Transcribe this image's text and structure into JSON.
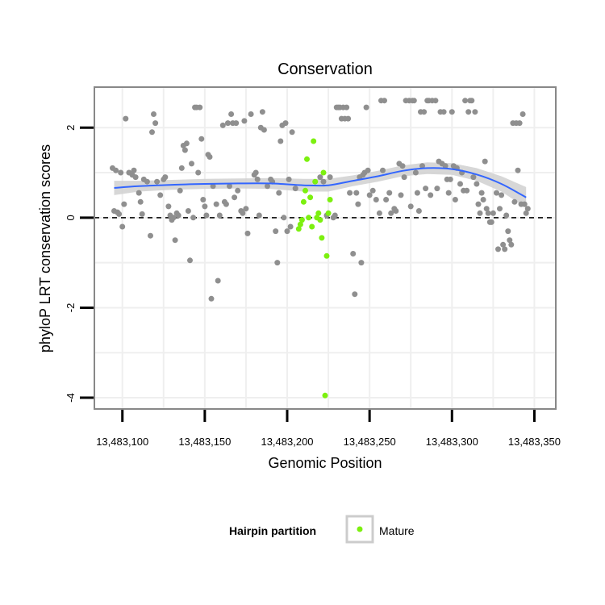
{
  "chart_data": {
    "type": "scatter",
    "title": "Conservation",
    "xlabel": "Genomic Position",
    "ylabel": "phyloP LRT conservation scores",
    "xlim": [
      13483083,
      13483363
    ],
    "ylim": [
      -4.25,
      2.9
    ],
    "x_ticks": [
      13483100,
      13483150,
      13483200,
      13483250,
      13483300,
      13483350
    ],
    "x_tick_labels": [
      "13,483,100",
      "13,483,150",
      "13,483,200",
      "13,483,250",
      "13,483,300",
      "13,483,350"
    ],
    "y_ticks": [
      -4,
      -2,
      0,
      2
    ],
    "y_tick_labels": [
      "-4",
      "-2",
      "0",
      "2"
    ],
    "reference_line": {
      "y": 0,
      "style": "dashed"
    },
    "grid": true,
    "colors": {
      "other": "#8f8f8f",
      "mature": "#7cf00f",
      "smooth": "#3366ff",
      "band": "#d0d0d0",
      "panel_border": "#888888",
      "grid": "#efefef"
    },
    "legend": {
      "title": "Hairpin partition",
      "entries": [
        {
          "label": "Mature",
          "color": "#7cf00f"
        }
      ],
      "placement": "bottom"
    },
    "series": [
      {
        "name": "Other",
        "points": [
          [
            13483094,
            1.1
          ],
          [
            13483095,
            0.15
          ],
          [
            13483096,
            1.05
          ],
          [
            13483097,
            0.12
          ],
          [
            13483098,
            0.08
          ],
          [
            13483099,
            1.0
          ],
          [
            13483100,
            -0.2
          ],
          [
            13483101,
            0.3
          ],
          [
            13483102,
            2.2
          ],
          [
            13483104,
            1.0
          ],
          [
            13483106,
            0.95
          ],
          [
            13483107,
            1.05
          ],
          [
            13483108,
            0.9
          ],
          [
            13483110,
            0.55
          ],
          [
            13483111,
            0.35
          ],
          [
            13483112,
            0.08
          ],
          [
            13483113,
            0.85
          ],
          [
            13483115,
            0.8
          ],
          [
            13483117,
            -0.4
          ],
          [
            13483118,
            1.9
          ],
          [
            13483119,
            2.3
          ],
          [
            13483120,
            2.1
          ],
          [
            13483121,
            0.8
          ],
          [
            13483123,
            0.5
          ],
          [
            13483125,
            0.85
          ],
          [
            13483126,
            0.9
          ],
          [
            13483128,
            0.25
          ],
          [
            13483129,
            0.05
          ],
          [
            13483130,
            -0.05
          ],
          [
            13483131,
            0.0
          ],
          [
            13483132,
            -0.5
          ],
          [
            13483133,
            0.1
          ],
          [
            13483134,
            0.05
          ],
          [
            13483135,
            0.6
          ],
          [
            13483136,
            1.1
          ],
          [
            13483137,
            1.6
          ],
          [
            13483138,
            1.5
          ],
          [
            13483139,
            1.65
          ],
          [
            13483140,
            0.15
          ],
          [
            13483141,
            -0.95
          ],
          [
            13483142,
            1.2
          ],
          [
            13483143,
            0.0
          ],
          [
            13483144,
            2.45
          ],
          [
            13483145,
            2.45
          ],
          [
            13483146,
            1.0
          ],
          [
            13483147,
            2.45
          ],
          [
            13483148,
            1.75
          ],
          [
            13483149,
            0.4
          ],
          [
            13483150,
            0.25
          ],
          [
            13483151,
            0.05
          ],
          [
            13483152,
            1.4
          ],
          [
            13483153,
            1.35
          ],
          [
            13483154,
            -1.8
          ],
          [
            13483155,
            0.7
          ],
          [
            13483157,
            0.3
          ],
          [
            13483158,
            -1.4
          ],
          [
            13483159,
            0.05
          ],
          [
            13483161,
            2.05
          ],
          [
            13483162,
            0.35
          ],
          [
            13483163,
            0.3
          ],
          [
            13483164,
            2.1
          ],
          [
            13483165,
            0.7
          ],
          [
            13483166,
            2.3
          ],
          [
            13483167,
            2.1
          ],
          [
            13483168,
            0.45
          ],
          [
            13483169,
            2.1
          ],
          [
            13483170,
            0.6
          ],
          [
            13483172,
            0.15
          ],
          [
            13483173,
            0.1
          ],
          [
            13483174,
            2.15
          ],
          [
            13483175,
            0.2
          ],
          [
            13483176,
            -0.35
          ],
          [
            13483178,
            2.3
          ],
          [
            13483180,
            0.95
          ],
          [
            13483181,
            1.0
          ],
          [
            13483182,
            0.85
          ],
          [
            13483183,
            0.05
          ],
          [
            13483184,
            2.0
          ],
          [
            13483185,
            2.35
          ],
          [
            13483186,
            1.95
          ],
          [
            13483188,
            0.7
          ],
          [
            13483190,
            0.85
          ],
          [
            13483191,
            0.8
          ],
          [
            13483193,
            -0.3
          ],
          [
            13483194,
            -1.0
          ],
          [
            13483195,
            0.55
          ],
          [
            13483196,
            1.7
          ],
          [
            13483197,
            2.05
          ],
          [
            13483198,
            0.0
          ],
          [
            13483199,
            2.1
          ],
          [
            13483200,
            -0.3
          ],
          [
            13483201,
            0.85
          ],
          [
            13483202,
            -0.2
          ],
          [
            13483203,
            1.9
          ],
          [
            13483205,
            0.65
          ],
          [
            13483220,
            0.9
          ],
          [
            13483222,
            0.8
          ],
          [
            13483224,
            0.05
          ],
          [
            13483226,
            0.9
          ],
          [
            13483228,
            0.0
          ],
          [
            13483229,
            0.05
          ],
          [
            13483230,
            2.45
          ],
          [
            13483231,
            2.45
          ],
          [
            13483232,
            2.45
          ],
          [
            13483233,
            2.2
          ],
          [
            13483234,
            2.45
          ],
          [
            13483235,
            2.2
          ],
          [
            13483236,
            2.45
          ],
          [
            13483237,
            2.2
          ],
          [
            13483238,
            0.55
          ],
          [
            13483240,
            -0.8
          ],
          [
            13483241,
            -1.7
          ],
          [
            13483242,
            0.55
          ],
          [
            13483243,
            0.3
          ],
          [
            13483244,
            0.9
          ],
          [
            13483245,
            -1.0
          ],
          [
            13483246,
            0.95
          ],
          [
            13483247,
            1.0
          ],
          [
            13483248,
            2.45
          ],
          [
            13483249,
            1.05
          ],
          [
            13483250,
            0.5
          ],
          [
            13483252,
            0.6
          ],
          [
            13483254,
            0.4
          ],
          [
            13483256,
            0.1
          ],
          [
            13483257,
            2.6
          ],
          [
            13483258,
            1.05
          ],
          [
            13483259,
            2.6
          ],
          [
            13483260,
            0.4
          ],
          [
            13483262,
            0.55
          ],
          [
            13483263,
            0.1
          ],
          [
            13483265,
            0.2
          ],
          [
            13483266,
            0.15
          ],
          [
            13483268,
            1.2
          ],
          [
            13483269,
            0.5
          ],
          [
            13483270,
            1.15
          ],
          [
            13483271,
            0.9
          ],
          [
            13483272,
            2.6
          ],
          [
            13483274,
            2.6
          ],
          [
            13483275,
            0.25
          ],
          [
            13483276,
            2.6
          ],
          [
            13483277,
            2.6
          ],
          [
            13483278,
            1.0
          ],
          [
            13483279,
            0.55
          ],
          [
            13483280,
            0.15
          ],
          [
            13483281,
            2.35
          ],
          [
            13483282,
            1.15
          ],
          [
            13483283,
            2.35
          ],
          [
            13483284,
            0.65
          ],
          [
            13483285,
            2.6
          ],
          [
            13483286,
            2.6
          ],
          [
            13483287,
            0.5
          ],
          [
            13483288,
            2.6
          ],
          [
            13483290,
            2.6
          ],
          [
            13483291,
            0.65
          ],
          [
            13483292,
            1.25
          ],
          [
            13483293,
            2.35
          ],
          [
            13483294,
            1.2
          ],
          [
            13483295,
            2.35
          ],
          [
            13483296,
            1.15
          ],
          [
            13483297,
            0.85
          ],
          [
            13483298,
            0.55
          ],
          [
            13483299,
            0.85
          ],
          [
            13483300,
            2.35
          ],
          [
            13483301,
            1.15
          ],
          [
            13483302,
            0.4
          ],
          [
            13483303,
            1.1
          ],
          [
            13483305,
            0.75
          ],
          [
            13483306,
            1.0
          ],
          [
            13483307,
            0.6
          ],
          [
            13483308,
            2.6
          ],
          [
            13483309,
            0.6
          ],
          [
            13483310,
            2.35
          ],
          [
            13483311,
            2.6
          ],
          [
            13483312,
            2.6
          ],
          [
            13483313,
            0.9
          ],
          [
            13483314,
            2.35
          ],
          [
            13483315,
            0.75
          ],
          [
            13483316,
            0.3
          ],
          [
            13483317,
            0.1
          ],
          [
            13483318,
            0.55
          ],
          [
            13483319,
            0.4
          ],
          [
            13483320,
            1.25
          ],
          [
            13483321,
            0.2
          ],
          [
            13483322,
            0.1
          ],
          [
            13483323,
            -0.1
          ],
          [
            13483324,
            -0.1
          ],
          [
            13483325,
            0.1
          ],
          [
            13483327,
            0.55
          ],
          [
            13483328,
            -0.7
          ],
          [
            13483329,
            0.2
          ],
          [
            13483330,
            0.5
          ],
          [
            13483331,
            -0.6
          ],
          [
            13483332,
            -0.7
          ],
          [
            13483333,
            0.05
          ],
          [
            13483334,
            -0.3
          ],
          [
            13483335,
            -0.5
          ],
          [
            13483336,
            -0.6
          ],
          [
            13483337,
            2.1
          ],
          [
            13483338,
            0.35
          ],
          [
            13483339,
            2.1
          ],
          [
            13483340,
            1.05
          ],
          [
            13483341,
            2.1
          ],
          [
            13483342,
            0.3
          ],
          [
            13483343,
            2.3
          ],
          [
            13483344,
            0.3
          ],
          [
            13483345,
            0.1
          ],
          [
            13483346,
            0.2
          ]
        ]
      },
      {
        "name": "Mature",
        "points": [
          [
            13483207,
            -0.25
          ],
          [
            13483208,
            -0.15
          ],
          [
            13483209,
            -0.05
          ],
          [
            13483210,
            0.35
          ],
          [
            13483211,
            0.6
          ],
          [
            13483212,
            1.3
          ],
          [
            13483213,
            0.0
          ],
          [
            13483214,
            0.45
          ],
          [
            13483215,
            -0.2
          ],
          [
            13483216,
            1.7
          ],
          [
            13483217,
            0.8
          ],
          [
            13483218,
            0.0
          ],
          [
            13483219,
            0.1
          ],
          [
            13483220,
            -0.05
          ],
          [
            13483221,
            -0.45
          ],
          [
            13483222,
            1.0
          ],
          [
            13483223,
            -3.95
          ],
          [
            13483224,
            -0.85
          ],
          [
            13483225,
            0.1
          ],
          [
            13483226,
            0.4
          ]
        ]
      }
    ],
    "smooth": {
      "x": [
        13483095,
        13483110,
        13483130,
        13483150,
        13483170,
        13483190,
        13483210,
        13483225,
        13483240,
        13483255,
        13483270,
        13483285,
        13483300,
        13483315,
        13483330,
        13483345
      ],
      "y": [
        0.66,
        0.7,
        0.73,
        0.75,
        0.76,
        0.76,
        0.72,
        0.72,
        0.82,
        0.92,
        1.04,
        1.1,
        1.08,
        0.96,
        0.75,
        0.45
      ],
      "lower": [
        0.5,
        0.58,
        0.62,
        0.64,
        0.65,
        0.64,
        0.58,
        0.58,
        0.7,
        0.8,
        0.92,
        0.97,
        0.95,
        0.82,
        0.58,
        0.22
      ],
      "upper": [
        0.82,
        0.82,
        0.84,
        0.86,
        0.87,
        0.88,
        0.86,
        0.86,
        0.94,
        1.04,
        1.16,
        1.23,
        1.21,
        1.1,
        0.92,
        0.68
      ]
    }
  }
}
